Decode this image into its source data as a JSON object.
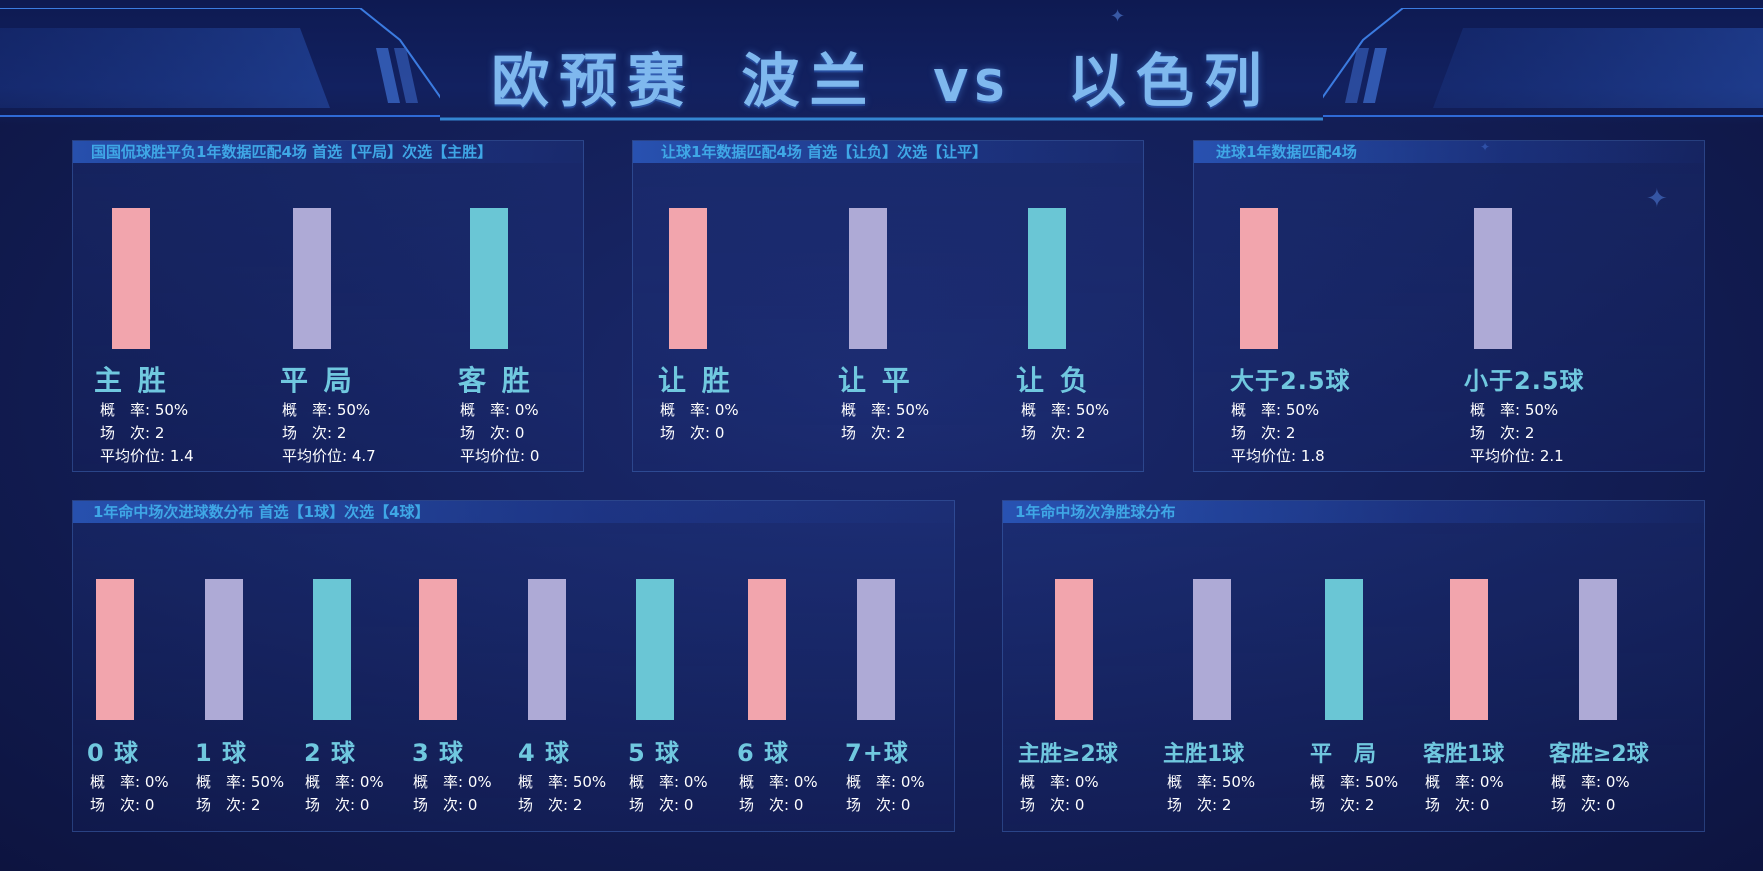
{
  "title": {
    "left": "欧预赛",
    "middle": "波兰",
    "vs": "VS",
    "right": "以色列"
  },
  "panels": {
    "wdl": {
      "heading": "国国侃球胜平负1年数据匹配4场 首选【平局】次选【主胜】",
      "items": [
        {
          "label": "主 胜",
          "prob_label": "概　率:",
          "prob": "50%",
          "count_label": "场　次:",
          "count": "2",
          "avg_label": "平均价位:",
          "avg": "1.4",
          "color": "#f2a5ad"
        },
        {
          "label": "平 局",
          "prob_label": "概　率:",
          "prob": "50%",
          "count_label": "场　次:",
          "count": "2",
          "avg_label": "平均价位:",
          "avg": "4.7",
          "color": "#aeaad6"
        },
        {
          "label": "客 胜",
          "prob_label": "概　率:",
          "prob": "0%",
          "count_label": "场　次:",
          "count": "0",
          "avg_label": "平均价位:",
          "avg": "0",
          "color": "#6ac6d5"
        }
      ]
    },
    "handicap": {
      "heading": "让球1年数据匹配4场 首选【让负】次选【让平】",
      "items": [
        {
          "label": "让 胜",
          "prob_label": "概　率:",
          "prob": "0%",
          "count_label": "场　次:",
          "count": "0",
          "color": "#f2a5ad"
        },
        {
          "label": "让 平",
          "prob_label": "概　率:",
          "prob": "50%",
          "count_label": "场　次:",
          "count": "2",
          "color": "#aeaad6"
        },
        {
          "label": "让 负",
          "prob_label": "概　率:",
          "prob": "50%",
          "count_label": "场　次:",
          "count": "2",
          "color": "#6ac6d5"
        }
      ]
    },
    "goals": {
      "heading": "进球1年数据匹配4场",
      "items": [
        {
          "label": "大于2.5球",
          "prob_label": "概　率:",
          "prob": "50%",
          "count_label": "场　次:",
          "count": "2",
          "avg_label": "平均价位:",
          "avg": "1.8",
          "color": "#f2a5ad"
        },
        {
          "label": "小于2.5球",
          "prob_label": "概　率:",
          "prob": "50%",
          "count_label": "场　次:",
          "count": "2",
          "avg_label": "平均价位:",
          "avg": "2.1",
          "color": "#aeaad6"
        }
      ]
    },
    "total_goals": {
      "heading": "1年命中场次进球数分布 首选【1球】次选【4球】",
      "items": [
        {
          "label": "0 球",
          "prob_label": "概　率:",
          "prob": "0%",
          "count_label": "场　次:",
          "count": "0",
          "color": "#f2a5ad"
        },
        {
          "label": "1 球",
          "prob_label": "概　率:",
          "prob": "50%",
          "count_label": "场　次:",
          "count": "2",
          "color": "#aeaad6"
        },
        {
          "label": "2 球",
          "prob_label": "概　率:",
          "prob": "0%",
          "count_label": "场　次:",
          "count": "0",
          "color": "#6ac6d5"
        },
        {
          "label": "3 球",
          "prob_label": "概　率:",
          "prob": "0%",
          "count_label": "场　次:",
          "count": "0",
          "color": "#f2a5ad"
        },
        {
          "label": "4 球",
          "prob_label": "概　率:",
          "prob": "50%",
          "count_label": "场　次:",
          "count": "2",
          "color": "#aeaad6"
        },
        {
          "label": "5 球",
          "prob_label": "概　率:",
          "prob": "0%",
          "count_label": "场　次:",
          "count": "0",
          "color": "#6ac6d5"
        },
        {
          "label": "6 球",
          "prob_label": "概　率:",
          "prob": "0%",
          "count_label": "场　次:",
          "count": "0",
          "color": "#f2a5ad"
        },
        {
          "label": "7+球",
          "prob_label": "概　率:",
          "prob": "0%",
          "count_label": "场　次:",
          "count": "0",
          "color": "#aeaad6"
        }
      ]
    },
    "net_win": {
      "heading": "1年命中场次净胜球分布",
      "items": [
        {
          "label": "主胜≥2球",
          "prob_label": "概　率:",
          "prob": "0%",
          "count_label": "场　次:",
          "count": "0",
          "color": "#f2a5ad"
        },
        {
          "label": "主胜1球",
          "prob_label": "概　率:",
          "prob": "50%",
          "count_label": "场　次:",
          "count": "2",
          "color": "#aeaad6"
        },
        {
          "label": "平　局",
          "prob_label": "概　率:",
          "prob": "50%",
          "count_label": "场　次:",
          "count": "2",
          "color": "#6ac6d5"
        },
        {
          "label": "客胜1球",
          "prob_label": "概　率:",
          "prob": "0%",
          "count_label": "场　次:",
          "count": "0",
          "color": "#f2a5ad"
        },
        {
          "label": "客胜≥2球",
          "prob_label": "概　率:",
          "prob": "0%",
          "count_label": "场　次:",
          "count": "0",
          "color": "#aeaad6"
        }
      ]
    }
  }
}
